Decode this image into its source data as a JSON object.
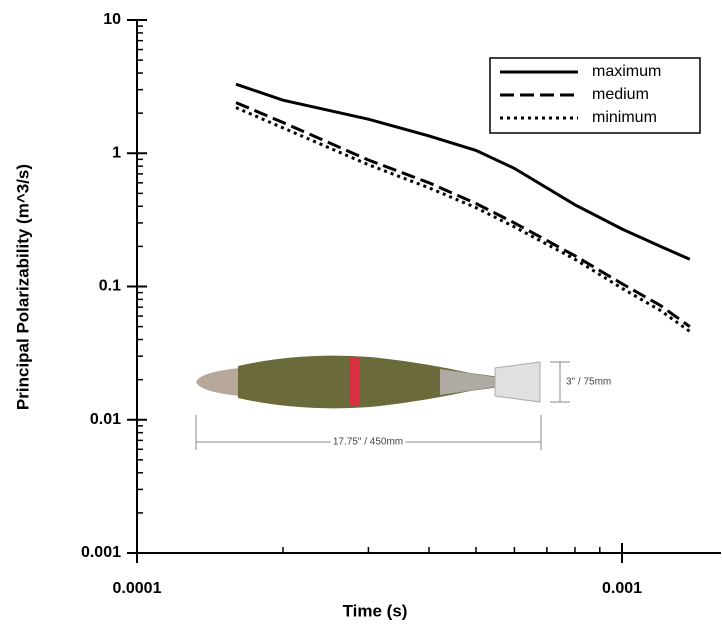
{
  "chart_data": {
    "type": "line",
    "xlabel": "Time (s)",
    "ylabel": "Principal Polarizability (m^3/s)",
    "xscale": "log",
    "yscale": "log",
    "xlim": [
      0.0001,
      0.0016
    ],
    "ylim": [
      0.001,
      10
    ],
    "xticks": [
      0.0001,
      0.001
    ],
    "yticks": [
      10,
      1,
      0.1,
      0.01,
      0.001
    ],
    "legend": "upper right",
    "x": [
      0.00016,
      0.0002,
      0.0003,
      0.0004,
      0.0005,
      0.0006,
      0.0008,
      0.001,
      0.0012,
      0.00138
    ],
    "series": [
      {
        "name": "maximum",
        "color": "#000000",
        "linestyle": "solid",
        "values": [
          3.3,
          2.5,
          1.8,
          1.35,
          1.05,
          0.77,
          0.41,
          0.27,
          0.2,
          0.16
        ]
      },
      {
        "name": "medium",
        "color": "#000000",
        "linestyle": "dashed",
        "values": [
          2.4,
          1.7,
          0.89,
          0.6,
          0.42,
          0.3,
          0.17,
          0.105,
          0.072,
          0.05
        ]
      },
      {
        "name": "minimum",
        "color": "#000000",
        "linestyle": "dotted",
        "values": [
          2.2,
          1.55,
          0.82,
          0.55,
          0.39,
          0.28,
          0.16,
          0.097,
          0.066,
          0.046
        ]
      }
    ],
    "annotations": [
      "3\" / 75mm",
      "17.75\" / 450mm"
    ]
  }
}
